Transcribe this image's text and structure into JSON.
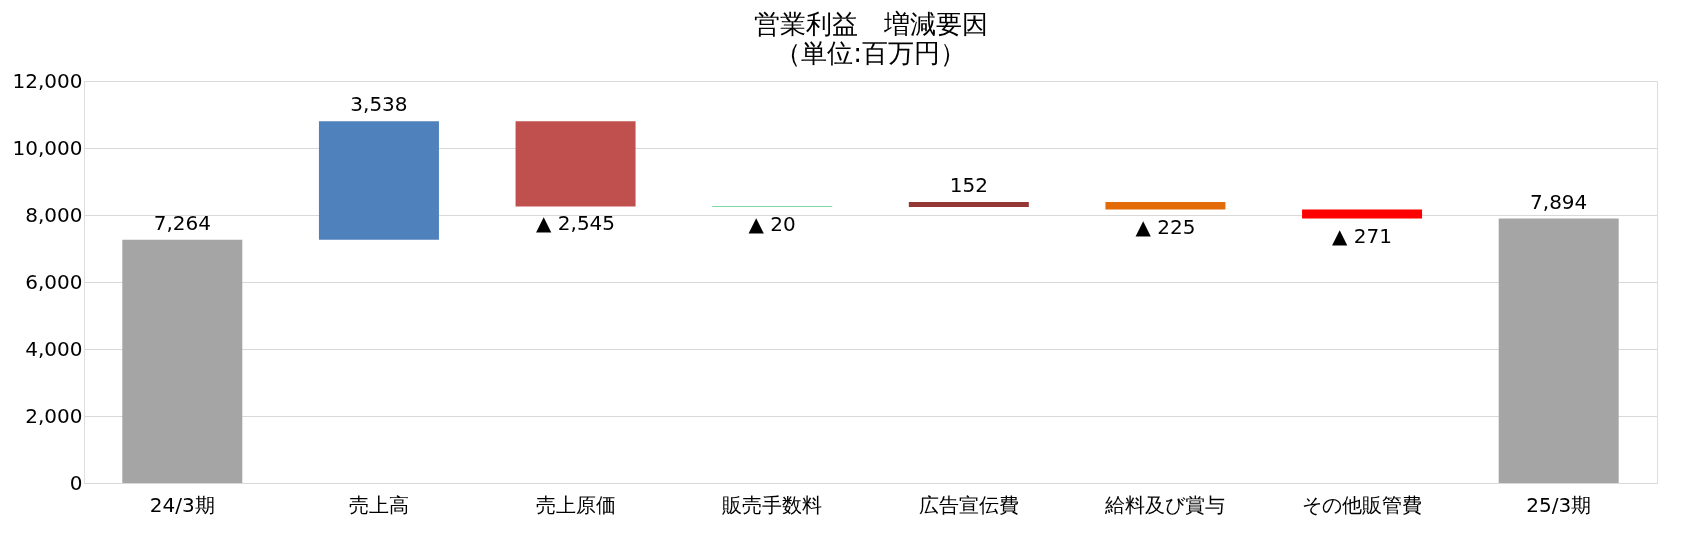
{
  "chart_data": {
    "type": "bar",
    "title": "営業利益　増減要因",
    "subtitle": "（単位:百万円）",
    "categories": [
      "24/3期",
      "売上高",
      "売上原価",
      "販売手数料",
      "広告宣伝費",
      "給料及び賞与",
      "その他販管費",
      "25/3期"
    ],
    "values": [
      7264,
      3538,
      -2545,
      -20,
      152,
      -225,
      -271,
      7894
    ],
    "base": [
      0,
      7264,
      10802,
      8257,
      8237,
      8389,
      8164,
      0
    ],
    "colors": [
      "#a5a5a5",
      "#4f81bd",
      "#c0504d",
      "#00b050",
      "#953735",
      "#e36c09",
      "#ff0000",
      "#a5a5a5"
    ],
    "value_labels": [
      "7,264",
      "3,538",
      "▲ 2,545",
      "▲ 20",
      "152",
      "▲ 225",
      "▲ 271",
      "7,894"
    ],
    "ylim": [
      0,
      12000
    ],
    "yticks": [
      0,
      {
        "value": 2000,
        "label": "2,000"
      },
      {
        "value": 4000,
        "label": "4,000"
      },
      {
        "value": 6000,
        "label": "6,000"
      },
      {
        "value": 8000,
        "label": "8,000"
      },
      {
        "value": 10000,
        "label": "10,000"
      },
      {
        "value": 12000,
        "label": "12,000"
      }
    ],
    "grid": "y"
  }
}
